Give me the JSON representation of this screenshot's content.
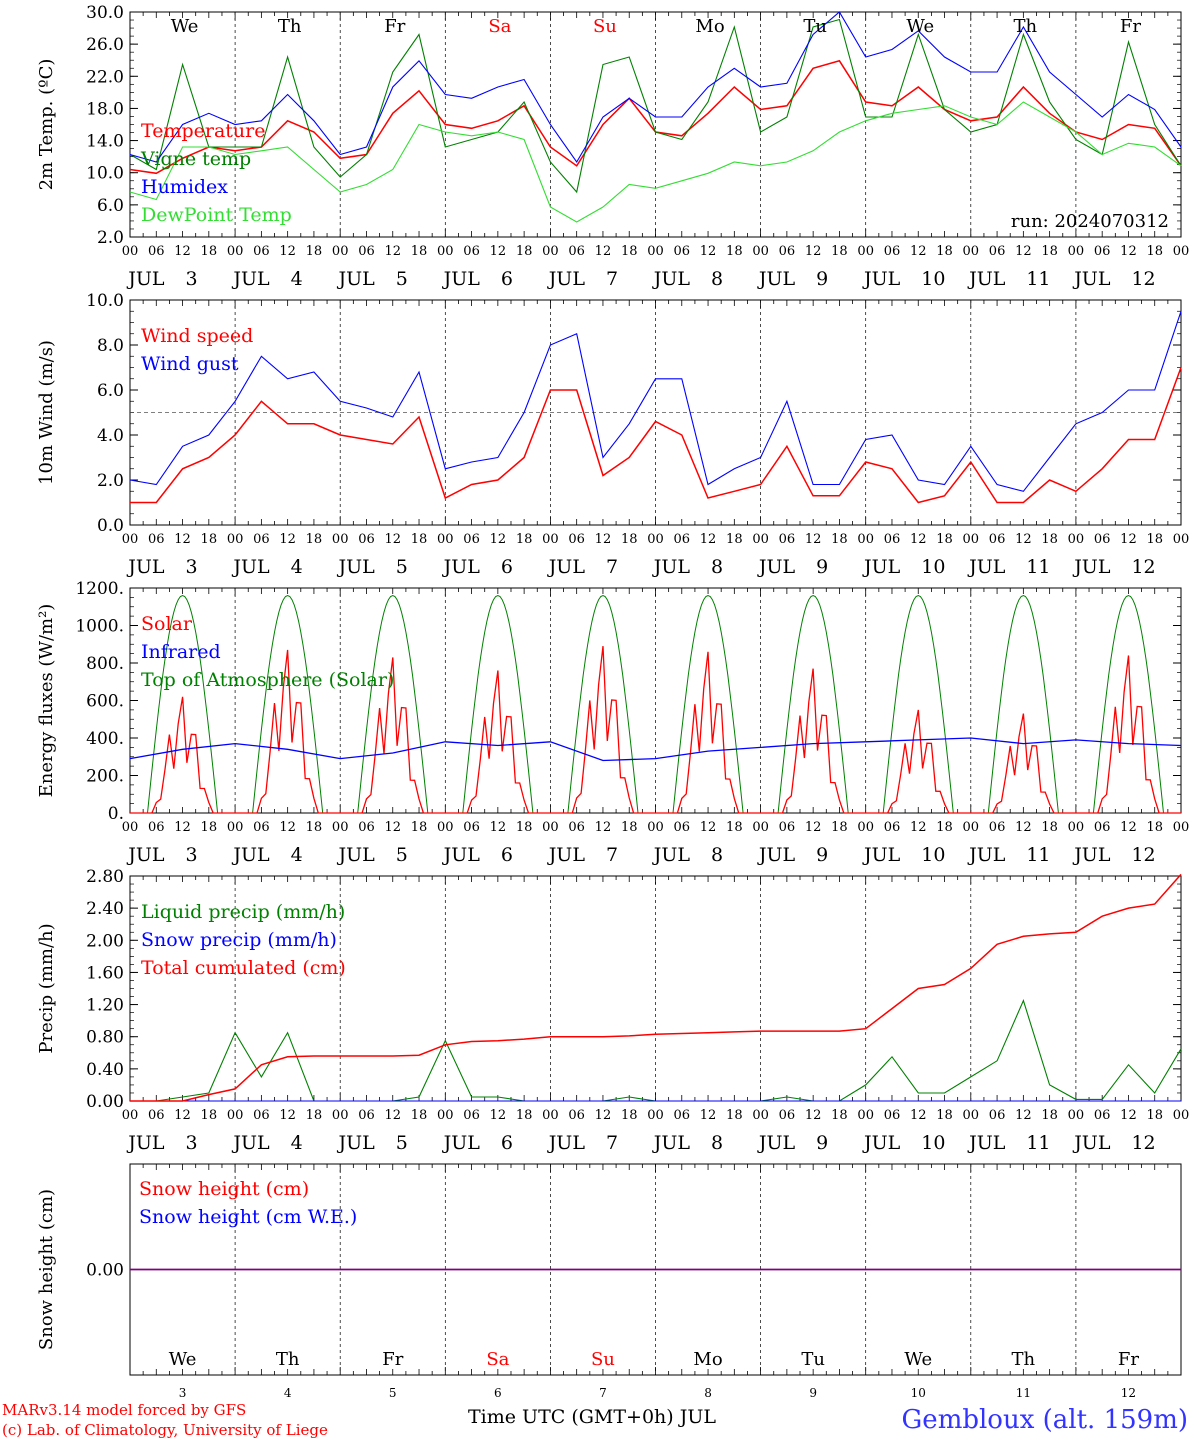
{
  "time_axis": {
    "hour_ticks": [
      "00",
      "06",
      "12",
      "18"
    ],
    "end_tick": "00",
    "month": "JUL",
    "dates": [
      "3",
      "4",
      "5",
      "6",
      "7",
      "8",
      "9",
      "10",
      "11",
      "12"
    ],
    "weekdays": [
      "We",
      "Th",
      "Fr",
      "Sa",
      "Su",
      "Mo",
      "Tu",
      "We",
      "Th",
      "Fr"
    ],
    "weekend_flags": [
      false,
      false,
      false,
      true,
      true,
      false,
      false,
      false,
      false,
      false
    ],
    "xlabel": "Time UTC (GMT+0h) JUL"
  },
  "colors": {
    "red": "#ff0000",
    "dark_green": "#008000",
    "blue": "#0000ff",
    "light_green": "#33dd33",
    "purple": "#800080",
    "location": "#3333ff"
  },
  "footer": {
    "credit_line1": "MARv3.14 model forced by GFS",
    "credit_line2": "(c) Lab. of Climatology, University of Liege",
    "location": "Gembloux (alt. 159m)"
  },
  "chart_data": [
    {
      "type": "line",
      "id": "temperature",
      "ylabel": "2m Temp. (ºC)",
      "ylim": [
        2,
        32
      ],
      "yticks": [
        "2.0",
        "6.0",
        "10.0",
        "14.0",
        "18.0",
        "22.0",
        "26.0",
        "30.0"
      ],
      "annotation": "run: 2024070312",
      "hline": null,
      "x_hours": [
        0,
        6,
        12,
        18,
        24,
        30,
        36,
        42,
        48,
        54,
        60,
        66,
        72,
        78,
        84,
        90,
        96,
        102,
        108,
        114,
        120,
        126,
        132,
        138,
        144,
        150,
        156,
        162,
        168,
        174,
        180,
        186,
        192,
        198,
        204,
        210,
        216,
        222,
        228,
        234,
        240
      ],
      "series": [
        {
          "name": "Temperature",
          "color": "red",
          "values": [
            11,
            10.5,
            12.5,
            14,
            13.5,
            14,
            17.5,
            16,
            12.5,
            13,
            18.5,
            21.5,
            17,
            16.5,
            17.5,
            19.5,
            14,
            11.5,
            17,
            20.5,
            16,
            15.5,
            18.5,
            22,
            19,
            19.5,
            24.5,
            25.5,
            20,
            19.5,
            22,
            19,
            17.5,
            18,
            22,
            18.5,
            16,
            15,
            17,
            16.5,
            11.5
          ]
        },
        {
          "name": "Vigne temp",
          "color": "dark_green",
          "values": [
            13,
            11,
            25,
            14,
            14,
            14,
            26,
            14,
            10,
            13,
            24,
            29,
            14,
            15,
            16,
            20,
            12,
            8,
            25,
            26,
            16,
            15,
            20,
            30,
            16,
            18,
            30,
            31,
            18,
            18,
            29,
            19,
            16,
            17,
            29,
            20,
            15,
            13,
            28,
            17,
            11.5
          ]
        },
        {
          "name": "Humidex",
          "color": "blue",
          "values": [
            13,
            12,
            17,
            18.5,
            17,
            17.5,
            21,
            17.5,
            13,
            14,
            22,
            25.5,
            21,
            20.5,
            22,
            23,
            17,
            12,
            18,
            20.5,
            18,
            18,
            22,
            24.5,
            22,
            22.5,
            29,
            32,
            26,
            27,
            29.5,
            26,
            24,
            24,
            30,
            24,
            21,
            18,
            21,
            19,
            14
          ]
        },
        {
          "name": "DewPoint Temp",
          "color": "light_green",
          "values": [
            8,
            7,
            14,
            14,
            13,
            13.5,
            14,
            11,
            8,
            9,
            11,
            17,
            16,
            15.5,
            16,
            15,
            6,
            4,
            6,
            9,
            8.5,
            9.5,
            10.5,
            12,
            11.5,
            12,
            13.5,
            16,
            17.5,
            18.5,
            19,
            19.5,
            18,
            17,
            20,
            18,
            16,
            13,
            14.5,
            14,
            11.5
          ]
        }
      ]
    },
    {
      "type": "line",
      "id": "wind",
      "ylabel": "10m Wind (m/s)",
      "ylim": [
        0,
        10
      ],
      "yticks": [
        "0.0",
        "2.0",
        "4.0",
        "6.0",
        "8.0",
        "10.0"
      ],
      "annotation": "",
      "hline": 5,
      "x_hours": [
        0,
        6,
        12,
        18,
        24,
        30,
        36,
        42,
        48,
        54,
        60,
        66,
        72,
        78,
        84,
        90,
        96,
        102,
        108,
        114,
        120,
        126,
        132,
        138,
        144,
        150,
        156,
        162,
        168,
        174,
        180,
        186,
        192,
        198,
        204,
        210,
        216,
        222,
        228,
        234,
        240
      ],
      "series": [
        {
          "name": "Wind speed",
          "color": "red",
          "values": [
            1,
            1,
            2.5,
            3,
            4,
            5.5,
            4.5,
            4.5,
            4,
            3.8,
            3.6,
            4.8,
            1.2,
            1.8,
            2,
            3,
            6,
            6,
            2.2,
            3,
            4.6,
            4,
            1.2,
            1.5,
            1.8,
            3.5,
            1.3,
            1.3,
            2.8,
            2.5,
            1,
            1.3,
            2.8,
            1,
            1,
            2,
            1.5,
            2.5,
            3.8,
            3.8,
            7
          ]
        },
        {
          "name": "Wind gust",
          "color": "blue",
          "values": [
            2,
            1.8,
            3.5,
            4,
            5.5,
            7.5,
            6.5,
            6.8,
            5.5,
            5.2,
            4.8,
            6.8,
            2.5,
            2.8,
            3,
            5,
            8,
            8.5,
            3,
            4.5,
            6.5,
            6.5,
            1.8,
            2.5,
            3,
            5.5,
            1.8,
            1.8,
            3.8,
            4,
            2,
            1.8,
            3.5,
            1.8,
            1.5,
            3,
            4.5,
            5,
            6,
            6,
            9.5
          ]
        }
      ]
    },
    {
      "type": "line",
      "id": "energy",
      "ylabel": "Energy fluxes (W/m²)",
      "ylim": [
        0,
        1200
      ],
      "yticks": [
        "0.",
        "200.",
        "400.",
        "600.",
        "800.",
        "1000.",
        "1200."
      ],
      "annotation": "",
      "hline": null,
      "toa_peak": 1160,
      "solar_peaks": [
        620,
        870,
        830,
        760,
        890,
        860,
        770,
        550,
        530,
        840
      ],
      "infrared": {
        "name": "Infrared",
        "color": "blue",
        "x_hours": [
          0,
          12,
          24,
          36,
          48,
          60,
          72,
          84,
          96,
          108,
          120,
          132,
          144,
          156,
          168,
          180,
          192,
          204,
          216,
          228,
          240
        ],
        "values": [
          290,
          340,
          370,
          340,
          290,
          320,
          380,
          360,
          380,
          280,
          290,
          330,
          350,
          370,
          380,
          390,
          400,
          370,
          390,
          370,
          360
        ]
      },
      "series_names": [
        {
          "name": "Solar",
          "color": "red"
        },
        {
          "name": "Infrared",
          "color": "blue"
        },
        {
          "name": "Top of Atmosphere (Solar)",
          "color": "dark_green"
        }
      ]
    },
    {
      "type": "line",
      "id": "precip",
      "ylabel": "Precip (mm/h)",
      "ylim": [
        0,
        2.8
      ],
      "yticks": [
        "0.00",
        "0.40",
        "0.80",
        "1.20",
        "1.60",
        "2.00",
        "2.40",
        "2.80"
      ],
      "annotation": "",
      "hline": null,
      "x_hours": [
        0,
        6,
        12,
        18,
        24,
        30,
        36,
        42,
        48,
        54,
        60,
        66,
        72,
        78,
        84,
        90,
        96,
        102,
        108,
        114,
        120,
        126,
        132,
        138,
        144,
        150,
        156,
        162,
        168,
        174,
        180,
        186,
        192,
        198,
        204,
        210,
        216,
        222,
        228,
        234,
        240
      ],
      "series": [
        {
          "name": "Liquid precip (mm/h)",
          "color": "dark_green",
          "values": [
            0,
            0,
            0.05,
            0.1,
            0.85,
            0.3,
            0.85,
            0,
            0,
            0,
            0,
            0.05,
            0.75,
            0.05,
            0.05,
            0,
            0,
            0,
            0,
            0.05,
            0,
            0,
            0,
            0,
            0,
            0.05,
            0,
            0,
            0.2,
            0.55,
            0.1,
            0.1,
            0.3,
            0.5,
            1.25,
            0.2,
            0.02,
            0.02,
            0.45,
            0.1,
            0.65
          ]
        },
        {
          "name": "Snow precip (mm/h)",
          "color": "blue",
          "values": [
            0,
            0,
            0,
            0,
            0,
            0,
            0,
            0,
            0,
            0,
            0,
            0,
            0,
            0,
            0,
            0,
            0,
            0,
            0,
            0,
            0,
            0,
            0,
            0,
            0,
            0,
            0,
            0,
            0,
            0,
            0,
            0,
            0,
            0,
            0,
            0,
            0,
            0,
            0,
            0,
            0
          ]
        },
        {
          "name": "Total cumulated (cm)",
          "color": "red",
          "values": [
            0,
            0,
            0,
            0.08,
            0.15,
            0.45,
            0.55,
            0.56,
            0.56,
            0.56,
            0.56,
            0.57,
            0.7,
            0.74,
            0.75,
            0.77,
            0.8,
            0.8,
            0.8,
            0.81,
            0.83,
            0.84,
            0.85,
            0.86,
            0.87,
            0.87,
            0.87,
            0.87,
            0.9,
            1.15,
            1.4,
            1.45,
            1.65,
            1.95,
            2.05,
            2.08,
            2.1,
            2.3,
            2.4,
            2.45,
            2.82
          ]
        }
      ]
    },
    {
      "type": "line",
      "id": "snow",
      "ylabel": "Snow height (cm)",
      "ylim": [
        -1,
        1
      ],
      "yticks": [
        "0.00"
      ],
      "annotation": "",
      "hline": null,
      "x_hours": [
        0,
        240
      ],
      "series": [
        {
          "name": "Snow height (cm)",
          "color": "red",
          "values": [
            0,
            0
          ]
        },
        {
          "name": "Snow height (cm W.E.)",
          "color": "blue",
          "values": [
            0,
            0
          ]
        }
      ]
    }
  ]
}
